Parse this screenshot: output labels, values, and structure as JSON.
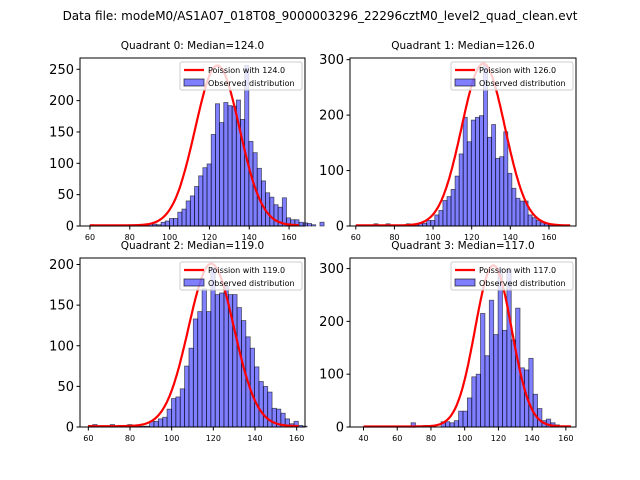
{
  "figure": {
    "suptitle": "Data file: modeM0/AS1A07_018T08_9000003296_22296cztM0_level2_quad_clean.evt",
    "bar_color": "#0000ff",
    "bar_alpha": 0.5,
    "bar_edge": "#000000",
    "line_color": "#ff0000"
  },
  "chart_data": [
    {
      "type": "bar",
      "title": "Quadrant 0: Median=124.0",
      "legend": [
        "Poission with 124.0",
        "Observed distribution"
      ],
      "legend_placement": "top-right",
      "xlim": [
        55,
        168
      ],
      "ylim": [
        0,
        268
      ],
      "xticks": [
        60,
        80,
        100,
        120,
        140,
        160
      ],
      "yticks": [
        0,
        50,
        100,
        150,
        200,
        250
      ],
      "bin_start": 60,
      "bin_width": 2.1,
      "values": [
        2,
        1,
        1,
        1,
        1,
        1,
        1,
        1,
        1,
        2,
        2,
        2,
        1,
        1,
        3,
        3,
        2,
        6,
        8,
        12,
        12,
        22,
        27,
        40,
        48,
        63,
        80,
        93,
        99,
        146,
        195,
        165,
        197,
        192,
        191,
        201,
        170,
        256,
        135,
        117,
        92,
        72,
        53,
        46,
        34,
        30,
        45,
        13,
        10,
        10,
        6,
        5,
        4,
        2,
        0,
        6
      ],
      "poisson_mean": 124.0,
      "poisson_peak": 255
    },
    {
      "type": "bar",
      "title": "Quadrant 1: Median=126.0",
      "legend": [
        "Poission with 126.0",
        "Observed distribution"
      ],
      "legend_placement": "top-right",
      "xlim": [
        57,
        174
      ],
      "ylim": [
        0,
        303
      ],
      "xticks": [
        60,
        80,
        100,
        120,
        140,
        160
      ],
      "yticks": [
        0,
        100,
        200,
        300
      ],
      "bin_start": 61,
      "bin_width": 2.1,
      "values": [
        1,
        1,
        1,
        1,
        4,
        1,
        1,
        4,
        1,
        1,
        1,
        1,
        4,
        1,
        2,
        5,
        5,
        10,
        10,
        20,
        28,
        46,
        53,
        66,
        90,
        130,
        196,
        152,
        191,
        196,
        199,
        290,
        160,
        183,
        122,
        125,
        170,
        95,
        68,
        50,
        45,
        45,
        20,
        15,
        10,
        6,
        4,
        2,
        1,
        1,
        1,
        1
      ],
      "poisson_mean": 126.0,
      "poisson_peak": 292
    },
    {
      "type": "bar",
      "title": "Quadrant 2: Median=119.0",
      "legend": [
        "Poission with 119.0",
        "Observed distribution"
      ],
      "legend_placement": "top-right",
      "xlim": [
        56,
        164
      ],
      "ylim": [
        0,
        208
      ],
      "xticks": [
        60,
        80,
        100,
        120,
        140,
        160
      ],
      "yticks": [
        0,
        50,
        100,
        150,
        200
      ],
      "bin_start": 60,
      "bin_width": 2.1,
      "values": [
        2,
        3,
        1,
        1,
        1,
        3,
        1,
        2,
        2,
        3,
        1,
        1,
        1,
        1,
        7,
        7,
        10,
        12,
        22,
        35,
        37,
        47,
        75,
        97,
        133,
        142,
        170,
        142,
        196,
        163,
        165,
        173,
        163,
        163,
        147,
        131,
        111,
        97,
        74,
        56,
        50,
        43,
        23,
        22,
        17,
        10,
        4,
        7,
        2,
        1
      ],
      "poisson_mean": 119.0,
      "poisson_peak": 200
    },
    {
      "type": "bar",
      "title": "Quadrant 3: Median=117.0",
      "legend": [
        "Poission with 117.0",
        "Observed distribution"
      ],
      "legend_placement": "top-right",
      "xlim": [
        32,
        166
      ],
      "ylim": [
        0,
        320
      ],
      "xticks": [
        40,
        60,
        80,
        100,
        120,
        140,
        160
      ],
      "yticks": [
        0,
        100,
        200,
        300
      ],
      "bin_start": 86,
      "bin_width": 2.6,
      "values": [
        10,
        10,
        8,
        12,
        30,
        30,
        55,
        95,
        100,
        215,
        135,
        240,
        175,
        300,
        183,
        300,
        165,
        225,
        112,
        108,
        130,
        62,
        35,
        12,
        15,
        8,
        4
      ],
      "outliers": [
        {
          "x": 69.5,
          "v": 8
        },
        {
          "x": 76.5,
          "v": 3
        },
        {
          "x": 79.5,
          "v": 3
        }
      ],
      "poisson_mean": 117.0,
      "poisson_peak": 305
    }
  ]
}
